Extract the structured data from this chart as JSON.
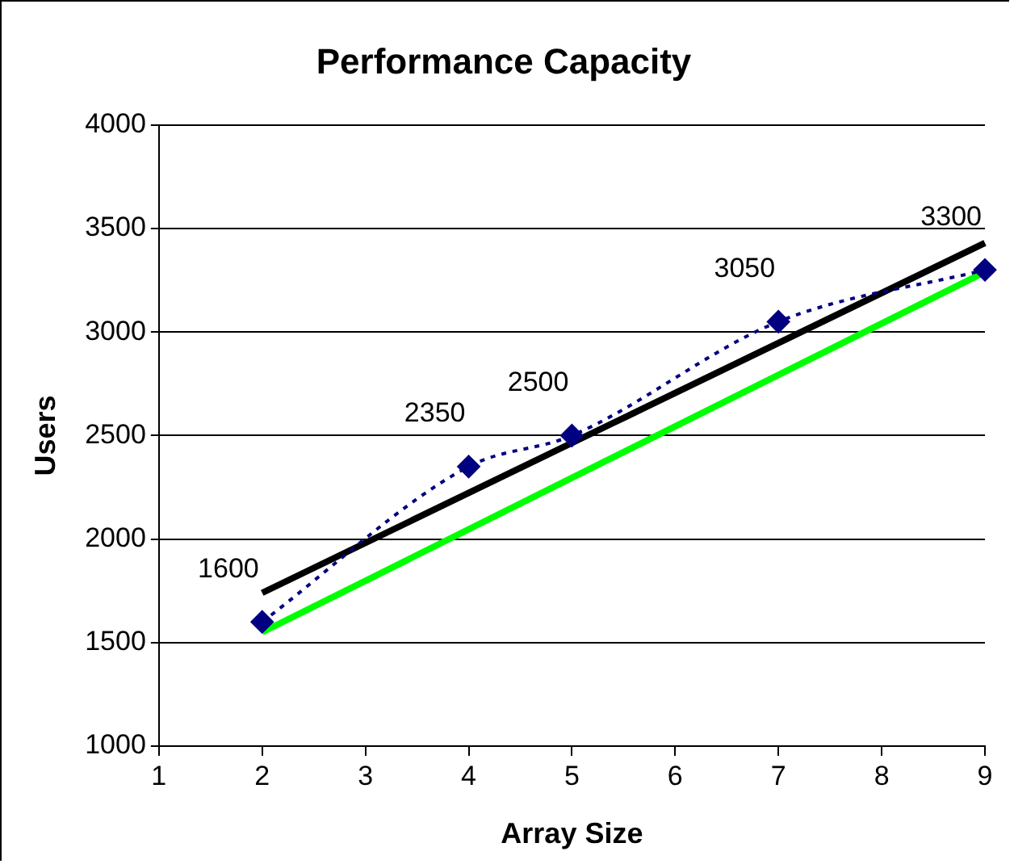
{
  "chart_data": {
    "type": "line",
    "title": "Performance Capacity",
    "xlabel": "Array Size",
    "ylabel": "Users",
    "xlim": [
      1,
      9
    ],
    "xticks": [
      1,
      2,
      3,
      4,
      5,
      6,
      7,
      8,
      9
    ],
    "ylim": [
      1000,
      4000
    ],
    "yticks": [
      1000,
      1500,
      2000,
      2500,
      3000,
      3500,
      4000
    ],
    "grid": "y",
    "legend": false,
    "series": [
      {
        "color": "#000080",
        "x": [
          2,
          4,
          5,
          7,
          9
        ],
        "values": [
          1600,
          2350,
          2500,
          3050,
          3300
        ],
        "marker": "diamond",
        "line_style": "dotted",
        "data_labels": true
      },
      {
        "type": "line",
        "color": "#000000",
        "x": [
          2,
          9
        ],
        "values": [
          1740,
          3430
        ],
        "marker": "none",
        "line_style": "solid"
      },
      {
        "type": "line",
        "color": "#00ff00",
        "x": [
          2,
          9
        ],
        "values": [
          1550,
          3290
        ],
        "marker": "none",
        "line_style": "solid"
      }
    ]
  }
}
